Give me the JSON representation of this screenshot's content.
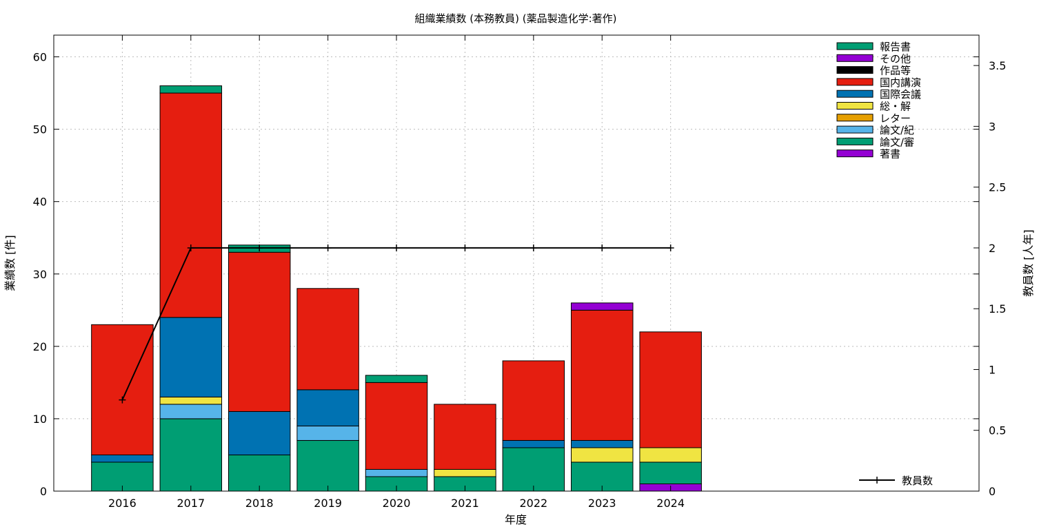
{
  "chart_data": {
    "type": "bar",
    "title": "組織業績数 (本務教員) (薬品製造化学:著作)",
    "xlabel": "年度",
    "ylabel": "業績数 [件]",
    "y2label": "教員数 [人年]",
    "categories": [
      "2016",
      "2017",
      "2018",
      "2019",
      "2020",
      "2021",
      "2022",
      "2023",
      "2024"
    ],
    "ylim": [
      0,
      63
    ],
    "y2lim": [
      0,
      3.75
    ],
    "yticks": [
      0,
      10,
      20,
      30,
      40,
      50,
      60
    ],
    "y2ticks": [
      0,
      0.5,
      1,
      1.5,
      2,
      2.5,
      3,
      3.5
    ],
    "stacked": true,
    "legend_position": "top-right",
    "series": [
      {
        "name": "著書",
        "color": "#9400d3",
        "values": [
          0,
          0,
          0,
          0,
          0,
          0,
          0,
          0,
          1
        ]
      },
      {
        "name": "論文/審",
        "color": "#009e73",
        "values": [
          4,
          10,
          5,
          7,
          2,
          2,
          6,
          4,
          3
        ]
      },
      {
        "name": "論文/紀",
        "color": "#56b4e9",
        "values": [
          0,
          2,
          0,
          2,
          1,
          0,
          0,
          0,
          0
        ]
      },
      {
        "name": "レター",
        "color": "#e69f00",
        "values": [
          0,
          0,
          0,
          0,
          0,
          0,
          0,
          0,
          0
        ]
      },
      {
        "name": "総・解",
        "color": "#f0e442",
        "values": [
          0,
          1,
          0,
          0,
          0,
          1,
          0,
          2,
          2
        ]
      },
      {
        "name": "国際会議",
        "color": "#0072b2",
        "values": [
          1,
          11,
          6,
          5,
          0,
          0,
          1,
          1,
          0
        ]
      },
      {
        "name": "国内講演",
        "color": "#e51e10",
        "values": [
          18,
          31,
          22,
          14,
          12,
          9,
          11,
          18,
          16
        ]
      },
      {
        "name": "作品等",
        "color": "#000000",
        "values": [
          0,
          0,
          0,
          0,
          0,
          0,
          0,
          0,
          0
        ]
      },
      {
        "name": "その他",
        "color": "#9400d3",
        "values": [
          0,
          0,
          0,
          0,
          0,
          0,
          0,
          1,
          0
        ]
      },
      {
        "name": "報告書",
        "color": "#009e73",
        "values": [
          0,
          1,
          1,
          0,
          1,
          0,
          0,
          0,
          0
        ]
      }
    ],
    "legend_order": [
      "報告書",
      "その他",
      "作品等",
      "国内講演",
      "国際会議",
      "総・解",
      "レター",
      "論文/紀",
      "論文/審",
      "著書"
    ],
    "line_series": {
      "name": "教員数",
      "axis": "y2",
      "color": "#000000",
      "values": [
        0.75,
        2,
        2,
        2,
        2,
        2,
        2,
        2,
        2
      ]
    }
  }
}
